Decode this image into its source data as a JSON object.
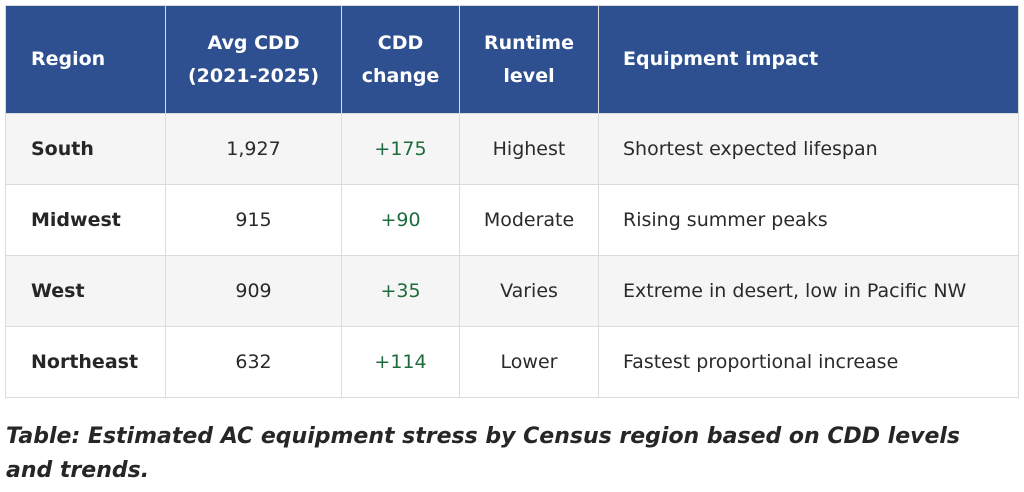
{
  "table": {
    "headers": [
      {
        "line1": "Region",
        "line2": ""
      },
      {
        "line1": "Avg CDD",
        "line2": "(2021-2025)"
      },
      {
        "line1": "CDD",
        "line2": "change"
      },
      {
        "line1": "Runtime",
        "line2": "level"
      },
      {
        "line1": "Equipment impact",
        "line2": ""
      }
    ],
    "rows": [
      {
        "region": "South",
        "avg_cdd": "1,927",
        "cdd_change": "+175",
        "runtime": "Highest",
        "impact": "Shortest expected lifespan"
      },
      {
        "region": "Midwest",
        "avg_cdd": "915",
        "cdd_change": "+90",
        "runtime": "Moderate",
        "impact": "Rising summer peaks"
      },
      {
        "region": "West",
        "avg_cdd": "909",
        "cdd_change": "+35",
        "runtime": "Varies",
        "impact": "Extreme in desert, low in Pacific NW"
      },
      {
        "region": "Northeast",
        "avg_cdd": "632",
        "cdd_change": "+114",
        "runtime": "Lower",
        "impact": "Fastest proportional increase"
      }
    ]
  },
  "caption": "Table: Estimated AC equipment stress by Census region based on CDD levels and trends.",
  "colors": {
    "header_bg": "#2e5090",
    "change_text": "#1e6b3d",
    "row_alt": "#f5f5f5"
  }
}
